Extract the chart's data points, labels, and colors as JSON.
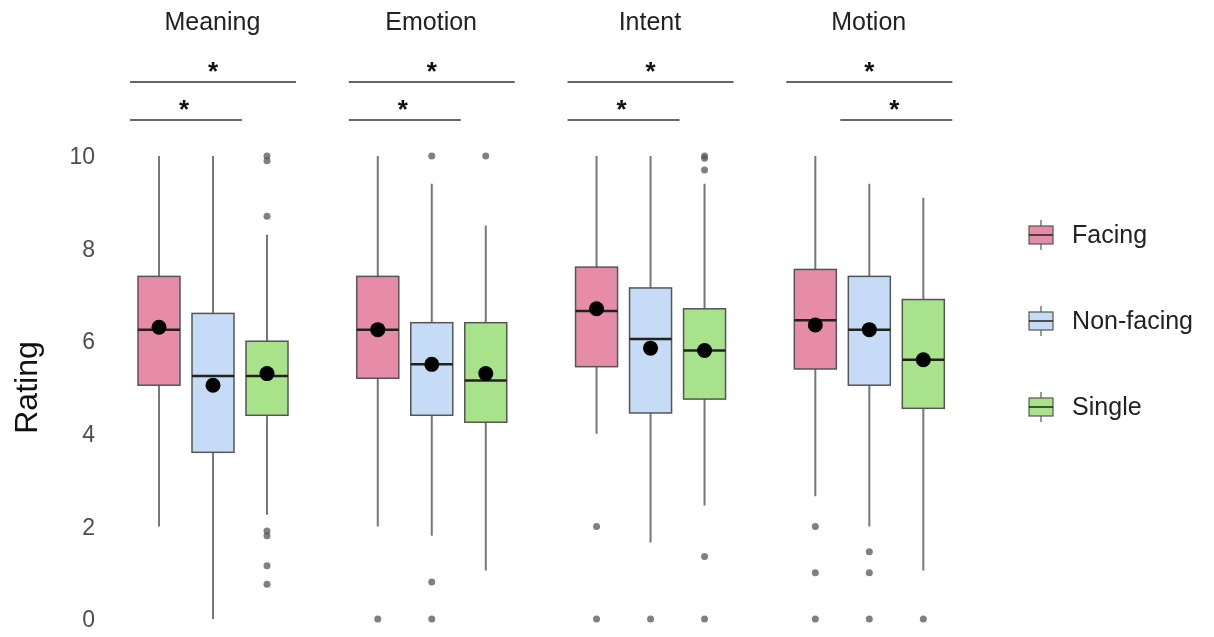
{
  "chart_data": {
    "type": "box",
    "categories": [
      "Meaning",
      "Emotion",
      "Intent",
      "Motion"
    ],
    "ylabel": "Rating",
    "ylim": [
      0,
      10
    ],
    "yticks": [
      0,
      2,
      4,
      6,
      8,
      10
    ],
    "grid": false,
    "legend": "right",
    "tick_labels": "y",
    "series": [
      {
        "name": "Facing",
        "color": "#e68ca8",
        "boxes": [
          {
            "low": 2,
            "q1": 5.05,
            "q3": 7.4,
            "median": 6.25,
            "high": 10,
            "mean": 6.3
          },
          {
            "low": 2,
            "q1": 5.2,
            "q3": 7.4,
            "median": 6.25,
            "high": 10,
            "mean": 6.25,
            "outliers": [
              0
            ]
          },
          {
            "low": 4,
            "q1": 5.45,
            "q3": 7.6,
            "median": 6.65,
            "high": 10,
            "mean": 6.7,
            "outliers": [
              2,
              0
            ]
          },
          {
            "low": 2.65,
            "q1": 5.4,
            "q3": 7.55,
            "median": 6.45,
            "high": 10,
            "mean": 6.35,
            "outliers": [
              2,
              1,
              0
            ]
          }
        ]
      },
      {
        "name": "Non-facing",
        "color": "#c6dbf5",
        "boxes": [
          {
            "low": 0,
            "q1": 3.6,
            "q3": 6.6,
            "median": 5.25,
            "high": 10,
            "mean": 5.05
          },
          {
            "low": 1.8,
            "q1": 4.4,
            "q3": 6.4,
            "median": 5.5,
            "high": 9.4,
            "mean": 5.5,
            "outliers": [
              10,
              0.8,
              0
            ]
          },
          {
            "low": 1.65,
            "q1": 4.45,
            "q3": 7.15,
            "median": 6.05,
            "high": 10,
            "mean": 5.85,
            "outliers": [
              0
            ]
          },
          {
            "low": 2,
            "q1": 5.05,
            "q3": 7.4,
            "median": 6.25,
            "high": 9.4,
            "mean": 6.25,
            "outliers": [
              1.45,
              1,
              0
            ]
          }
        ]
      },
      {
        "name": "Single",
        "color": "#a8e28a",
        "boxes": [
          {
            "low": 2.25,
            "q1": 4.4,
            "q3": 6,
            "median": 5.25,
            "high": 8.3,
            "mean": 5.3,
            "outliers": [
              10,
              9.9,
              8.7,
              1.9,
              1.8,
              1.15,
              0.75
            ]
          },
          {
            "low": 1.05,
            "q1": 4.25,
            "q3": 6.4,
            "median": 5.15,
            "high": 8.5,
            "mean": 5.3,
            "outliers": [
              10
            ]
          },
          {
            "low": 2.45,
            "q1": 4.75,
            "q3": 6.7,
            "median": 5.8,
            "high": 9.4,
            "mean": 5.8,
            "outliers": [
              10,
              9.95,
              9.7,
              1.35,
              0
            ]
          },
          {
            "low": 1.05,
            "q1": 4.55,
            "q3": 6.9,
            "median": 5.6,
            "high": 9.1,
            "mean": 5.6,
            "outliers": [
              0
            ]
          }
        ]
      }
    ],
    "annotations": [
      "*",
      "*",
      "*",
      "*",
      "*",
      "*",
      "*",
      "*"
    ]
  }
}
